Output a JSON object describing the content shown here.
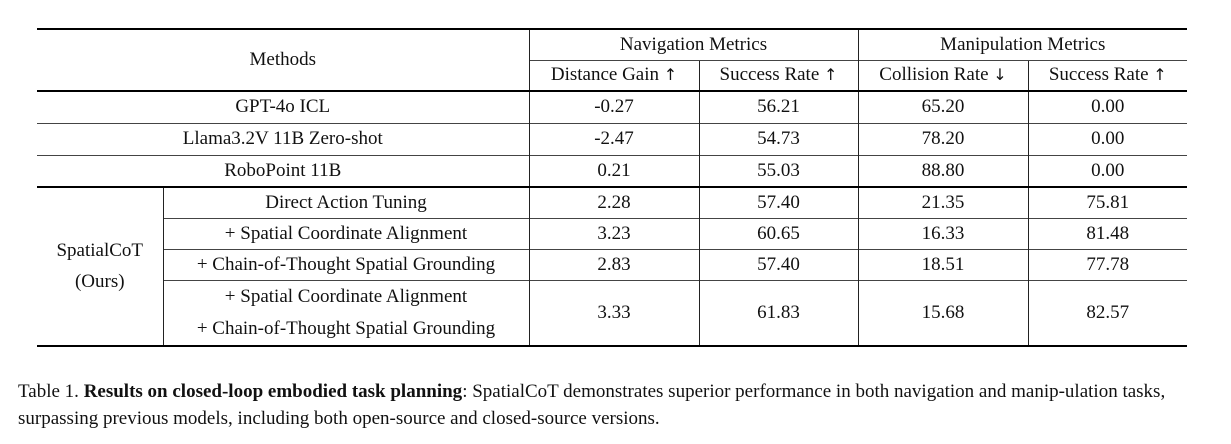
{
  "table": {
    "header": {
      "methods": "Methods",
      "nav_group": "Navigation Metrics",
      "manip_group": "Manipulation Metrics",
      "columns": [
        {
          "label": "Distance Gain",
          "arrow": "↑"
        },
        {
          "label": "Success Rate",
          "arrow": "↑"
        },
        {
          "label": "Collision Rate",
          "arrow": "↓"
        },
        {
          "label": "Success Rate",
          "arrow": "↑"
        }
      ]
    },
    "baselines": [
      {
        "method": "GPT-4o ICL",
        "values": [
          "-0.27",
          "56.21",
          "65.20",
          "0.00"
        ]
      },
      {
        "method": "Llama3.2V 11B Zero-shot",
        "values": [
          "-2.47",
          "54.73",
          "78.20",
          "0.00"
        ]
      },
      {
        "method": "RoboPoint 11B",
        "values": [
          "0.21",
          "55.03",
          "88.80",
          "0.00"
        ]
      }
    ],
    "ours": {
      "group_line1": "SpatialCoT",
      "group_line2": "(Ours)",
      "rows": [
        {
          "method": "Direct Action Tuning",
          "values": [
            "2.28",
            "57.40",
            "21.35",
            "75.81"
          ]
        },
        {
          "method": "+ Spatial Coordinate Alignment",
          "values": [
            "3.23",
            "60.65",
            "16.33",
            "81.48"
          ]
        },
        {
          "method": "+ Chain-of-Thought Spatial Grounding",
          "values": [
            "2.83",
            "57.40",
            "18.51",
            "77.78"
          ]
        }
      ],
      "final": {
        "method_line1": "+ Spatial Coordinate Alignment",
        "method_line2": "+ Chain-of-Thought Spatial Grounding",
        "values": [
          "3.33",
          "61.83",
          "15.68",
          "82.57"
        ]
      }
    }
  },
  "caption": {
    "label": "Table 1.",
    "title": "Results on closed-loop embodied task planning",
    "text": ": SpatialCoT demonstrates superior performance in both navigation and manip-ulation tasks, surpassing previous models, including both open-source and closed-source versions."
  }
}
